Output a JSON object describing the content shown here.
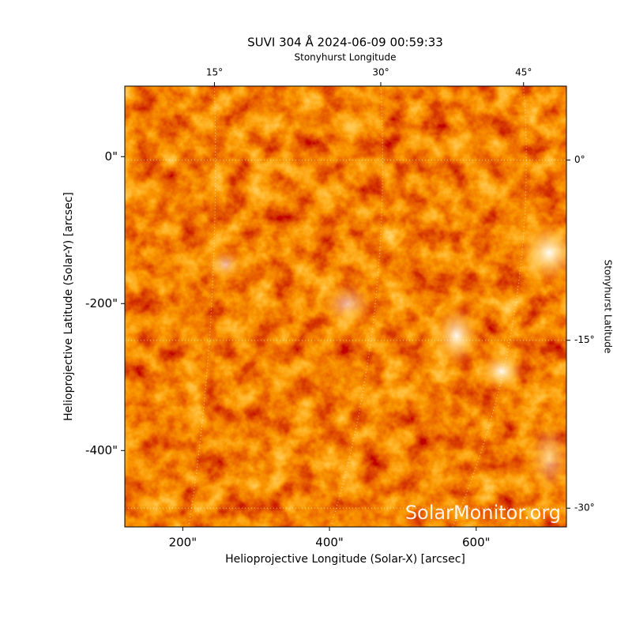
{
  "chart_data": {
    "type": "image",
    "title": "SUVI 304 Å 2024-06-09 00:59:33",
    "xlabel": "Helioprojective Longitude (Solar-X) [arcsec]",
    "ylabel": "Helioprojective Latitude (Solar-Y) [arcsec]",
    "x2label": "Stonyhurst Longitude",
    "y2label": "Stonyhurst Latitude",
    "annotation": "SolarMonitor.org",
    "xlim": [
      121,
      723
    ],
    "ylim": [
      -504,
      96
    ],
    "xticks": [
      {
        "value": 200,
        "label": "200\""
      },
      {
        "value": 400,
        "label": "400\""
      },
      {
        "value": 600,
        "label": "600\""
      }
    ],
    "yticks": [
      {
        "value": 0,
        "label": "0\""
      },
      {
        "value": -200,
        "label": "-200\""
      },
      {
        "value": -400,
        "label": "-400\""
      }
    ],
    "x2lim": [
      7.36,
      49.9
    ],
    "x2scale": "sine",
    "x2ticks": [
      {
        "value": 15,
        "label": "15°"
      },
      {
        "value": 30,
        "label": "30°"
      },
      {
        "value": 45,
        "label": "45°"
      }
    ],
    "y2lim": [
      -31.8,
      6.1
    ],
    "y2scale": "sine",
    "y2ticks": [
      {
        "value": 0,
        "label": "0°"
      },
      {
        "value": -15,
        "label": "-15°"
      },
      {
        "value": -30,
        "label": "-30°"
      }
    ],
    "grid": true
  }
}
